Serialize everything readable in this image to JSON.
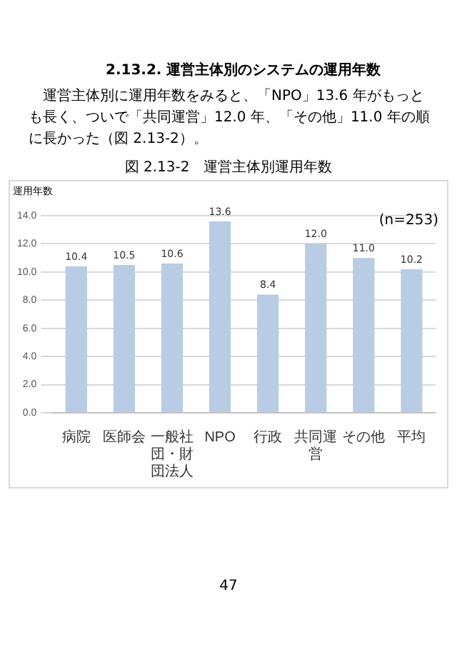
{
  "chart_data": {
    "type": "bar",
    "title": "図 2.13-2　運営主体別運用年数",
    "ylabel": "運用年数",
    "annotations": [
      "2.13.2. 運営主体別のシステムの運用年数",
      "運営主体別に運用年数をみると、「NPO」13.6 年がもっとも長く、ついで「共同運営」12.0 年、「その他」11.0 年の順に長かった（図 2.13-2）。",
      "(n=253)",
      "47"
    ],
    "categories": [
      "病院",
      "医師会",
      "一般社団・財団法人",
      "NPO",
      "行政",
      "共同運営",
      "その他",
      "平均"
    ],
    "values": [
      10.4,
      10.5,
      10.6,
      13.6,
      8.4,
      12.0,
      11.0,
      10.2
    ],
    "value_labels": [
      "10.4",
      "10.5",
      "10.6",
      "13.6",
      "8.4",
      "12.0",
      "11.0",
      "10.2"
    ],
    "color": "#b8cce4",
    "ylim": [
      0,
      14
    ],
    "yticks": [
      {
        "value": 0,
        "label": "0.0"
      },
      {
        "value": 2,
        "label": "2.0"
      },
      {
        "value": 4,
        "label": "4.0"
      },
      {
        "value": 6,
        "label": "6.0"
      },
      {
        "value": 8,
        "label": "8.0"
      },
      {
        "value": 10,
        "label": "10.0"
      },
      {
        "value": 12,
        "label": "12.0"
      },
      {
        "value": 14,
        "label": "14.0"
      }
    ],
    "grid": "y"
  }
}
